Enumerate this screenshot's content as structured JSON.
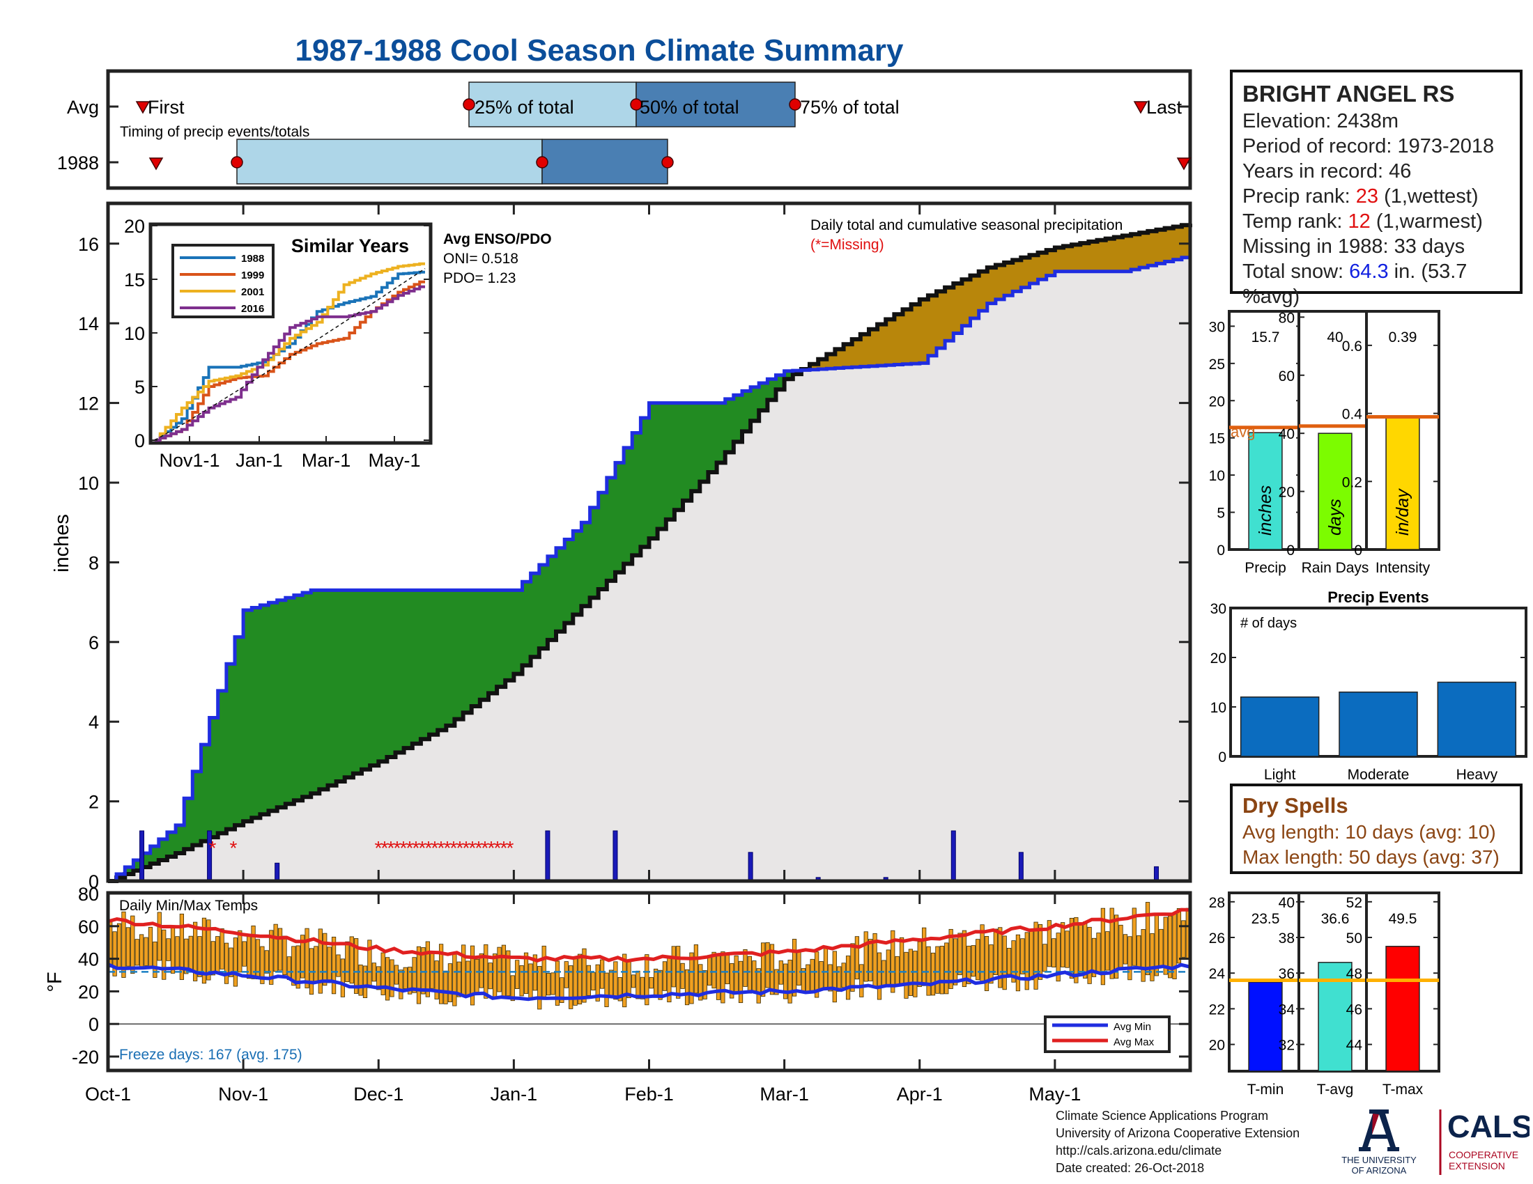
{
  "title": "1987-1988 Cool Season Climate Summary",
  "timing": {
    "avg_label": "Avg",
    "year_label": "1988",
    "first_label": "First",
    "last_label": "Last",
    "p25_label": "25% of total",
    "p50_label": "50% of total",
    "p75_label": "75% of total",
    "subtitle": "Timing of precip events/totals"
  },
  "station": {
    "name": "BRIGHT ANGEL RS",
    "elevation_label": "Elevation: 2438m",
    "period_label": "Period of record: 1973-2018",
    "years_label": "Years in record: 46",
    "precip_rank_prefix": "Precip rank: ",
    "precip_rank_value": "23",
    "precip_rank_suffix": " (1,wettest)",
    "temp_rank_prefix": "Temp rank: ",
    "temp_rank_value": "12",
    "temp_rank_suffix": " (1,warmest)",
    "missing_label": "Missing in 1988: 33 days",
    "snow_prefix": "Total snow: ",
    "snow_value": "64.3",
    "snow_suffix": " in. (53.7",
    "snow_line2": "%avg)"
  },
  "main": {
    "ylabel": "inches",
    "annotation": "Daily total and cumulative seasonal precipitation",
    "missing_note": "(*=Missing)",
    "x_ticks": [
      "Oct-1",
      "Nov-1",
      "Dec-1",
      "Jan-1",
      "Feb-1",
      "Mar-1",
      "Apr-1",
      "May-1"
    ],
    "y_ticks": [
      "0",
      "2",
      "4",
      "6",
      "8",
      "10",
      "12",
      "14",
      "16"
    ]
  },
  "inset": {
    "title": "Similar Years",
    "enso_title": "Avg ENSO/PDO",
    "oni": "ONI= 0.518",
    "pdo": "PDO= 1.23",
    "legend": [
      "1988",
      "1999",
      "2001",
      "2016"
    ],
    "x_ticks": [
      "Nov1-1",
      "Jan-1",
      "Mar-1",
      "May-1"
    ],
    "y_ticks": [
      "0",
      "5",
      "10",
      "15",
      "20"
    ]
  },
  "temps": {
    "label": "Daily Min/Max Temps",
    "ylabel": "°F",
    "freeze_label": "Freeze days: 167 (avg. 175)",
    "legend_min": "Avg Min",
    "legend_max": "Avg Max",
    "y_ticks": [
      "-20",
      "0",
      "20",
      "40",
      "60",
      "80"
    ]
  },
  "dry_spells": {
    "title": "Dry Spells",
    "avg": "Avg length: 10 days (avg: 10)",
    "max": "Max length: 50 days (avg: 37)"
  },
  "credits": {
    "line1": "Climate Science Applications Program",
    "line2": "University of Arizona Cooperative Extension",
    "line3": "http://cals.arizona.edu/climate",
    "line4": " Date created: 26-Oct-2018"
  },
  "logos": {
    "ua_line1": "THE UNIVERSITY",
    "ua_line2": "OF ARIZONA",
    "cals": "CALS",
    "coop1": "COOPERATIVE",
    "coop2": "EXTENSION"
  },
  "chart_data": [
    {
      "type": "line",
      "title": "Daily total and cumulative seasonal precipitation",
      "ylabel": "inches",
      "ylim": [
        0,
        17
      ],
      "x": [
        "Oct-1",
        "Oct-15",
        "Nov-1",
        "Nov-15",
        "Dec-1",
        "Dec-15",
        "Jan-1",
        "Jan-15",
        "Feb-1",
        "Feb-15",
        "Mar-1",
        "Mar-15",
        "Apr-1",
        "Apr-15",
        "May-1",
        "May-15",
        "May-31"
      ],
      "series": [
        {
          "name": "1988",
          "color": "#1f2de0",
          "values": [
            0,
            1.4,
            6.8,
            7.3,
            7.3,
            7.3,
            7.3,
            9.0,
            12.0,
            12.0,
            12.8,
            12.9,
            13.0,
            14.5,
            15.3,
            15.3,
            15.7
          ]
        },
        {
          "color": "#111111",
          "values": [
            0,
            0.7,
            1.5,
            2.2,
            3.0,
            3.9,
            5.2,
            6.9,
            8.6,
            10.5,
            12.6,
            13.6,
            14.6,
            15.4,
            15.9,
            16.2,
            16.5
          ]
        }
      ],
      "missing_days": [
        "Oct-25",
        "Oct-31",
        "Dec-1 to Dec-31"
      ]
    },
    {
      "type": "line",
      "title": "Similar Years",
      "x_ticks": [
        "Nov1-1",
        "Jan-1",
        "Mar-1",
        "May-1"
      ],
      "ylim": [
        0,
        20
      ],
      "series": [
        {
          "name": "1988",
          "color": "#1a73b8",
          "values": [
            0,
            2,
            6.8,
            6.8,
            7.3,
            9,
            12,
            12.8,
            13.4,
            15.5,
            15.7
          ]
        },
        {
          "name": "1999",
          "color": "#d95319",
          "values": [
            0,
            1,
            5.0,
            5.8,
            6.0,
            8,
            9.0,
            9.5,
            12.0,
            13.8,
            15.0
          ]
        },
        {
          "name": "2001",
          "color": "#edb120",
          "values": [
            0,
            3,
            5.5,
            6.0,
            7.0,
            9.5,
            11,
            14.5,
            15.5,
            16.2,
            16.5
          ]
        },
        {
          "name": "2016",
          "color": "#7e2f8e",
          "values": [
            0,
            1,
            3.0,
            4.0,
            7.5,
            10.5,
            11.5,
            11.5,
            12.0,
            13.5,
            14.5
          ]
        }
      ]
    },
    {
      "type": "bar",
      "title": "Daily Min/Max Temps",
      "ylabel": "°F",
      "ylim": [
        -20,
        80
      ],
      "x": [
        "Oct-1",
        "Nov-1",
        "Dec-1",
        "Jan-1",
        "Feb-1",
        "Mar-1",
        "Apr-1",
        "May-1",
        "May-31"
      ],
      "series": [
        {
          "name": "Avg Min",
          "color": "#1f2de0",
          "values": [
            36,
            30,
            22,
            16,
            18,
            20,
            24,
            30,
            36
          ]
        },
        {
          "name": "Avg Max",
          "color": "#e02020",
          "values": [
            64,
            56,
            46,
            40,
            40,
            44,
            52,
            60,
            70
          ]
        }
      ],
      "freeze_threshold": 32
    },
    {
      "type": "bar",
      "categories": [
        "Precip",
        "Rain Days",
        "Intensity"
      ],
      "values": [
        15.7,
        40,
        0.39
      ],
      "averages": [
        16.4,
        42.5,
        0.39
      ],
      "value_labels": [
        "15.7",
        "40",
        "0.39"
      ],
      "bar_labels": [
        "inches",
        "days",
        "in/day"
      ],
      "avg_label": "avg",
      "ylims": [
        [
          0,
          32
        ],
        [
          0,
          82
        ],
        [
          0,
          0.7
        ]
      ],
      "y_ticks": [
        [
          "0",
          "5",
          "10",
          "15",
          "20",
          "25",
          "30"
        ],
        [
          "0",
          "20",
          "40",
          "60",
          "80"
        ],
        [
          "0",
          "0.2",
          "0.4",
          "0.6"
        ]
      ]
    },
    {
      "type": "bar",
      "title": "Precip Events",
      "ylabel": "# of days",
      "categories": [
        "Light",
        "Moderate",
        "Heavy"
      ],
      "values": [
        12,
        13,
        15
      ],
      "ylim": [
        0,
        30
      ],
      "y_ticks": [
        "0",
        "10",
        "20",
        "30"
      ]
    },
    {
      "type": "bar",
      "categories": [
        "T-min",
        "T-avg",
        "T-max"
      ],
      "values": [
        23.5,
        36.6,
        49.5
      ],
      "value_labels": [
        "23.5",
        "36.6",
        "49.5"
      ],
      "averages": [
        23.6,
        35.6,
        47.6
      ],
      "ylims": [
        [
          18.5,
          28.5
        ],
        [
          30.5,
          40.5
        ],
        [
          42.5,
          52.5
        ]
      ],
      "y_ticks": [
        [
          "20",
          "22",
          "24",
          "26",
          "28"
        ],
        [
          "32",
          "34",
          "36",
          "38",
          "40"
        ],
        [
          "44",
          "46",
          "48",
          "50",
          "52"
        ]
      ]
    }
  ]
}
